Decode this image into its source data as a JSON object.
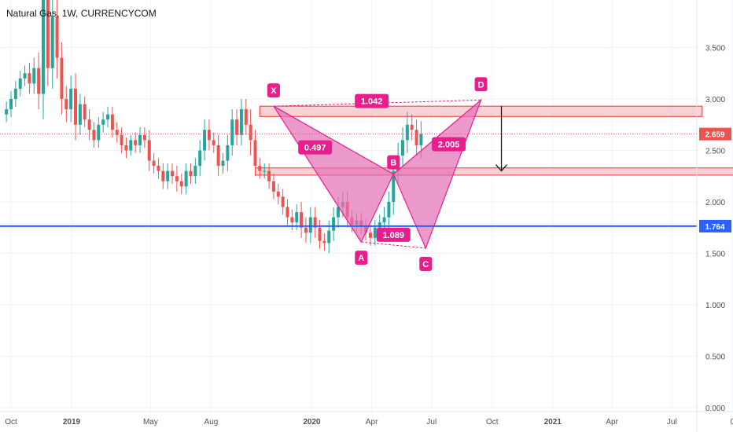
{
  "header": {
    "title": "Natural Gas, 1W, CURRENCYCOM"
  },
  "colors": {
    "up": "#26a69a",
    "down": "#ef5350",
    "pattern": "#e91e8c",
    "pattern_fill": "#e46fb6",
    "level": "#2962ff",
    "zone_fill": "#f4c2c7",
    "zone_stroke": "#e53935"
  },
  "chart_data": {
    "type": "candlestick",
    "title": "Natural Gas, 1W, CURRENCYCOM",
    "ylim": [
      0,
      4.0
    ],
    "y_ticks": [
      "3.500",
      "3.000",
      "2.500",
      "2.000",
      "1.500",
      "1.000",
      "0.500",
      "0.000"
    ],
    "x_ticks": [
      {
        "label": "Oct",
        "date": "2018-10-01",
        "bold": false
      },
      {
        "label": "2019",
        "date": "2019-01-01",
        "bold": true
      },
      {
        "label": "May",
        "date": "2019-05-01",
        "bold": false
      },
      {
        "label": "Aug",
        "date": "2019-08-01",
        "bold": false
      },
      {
        "label": "2020",
        "date": "2020-01-01",
        "bold": true
      },
      {
        "label": "Apr",
        "date": "2020-04-01",
        "bold": false
      },
      {
        "label": "Jul",
        "date": "2020-07-01",
        "bold": false
      },
      {
        "label": "Oct",
        "date": "2020-10-01",
        "bold": false
      },
      {
        "label": "2021",
        "date": "2021-01-01",
        "bold": true
      },
      {
        "label": "Apr",
        "date": "2021-04-01",
        "bold": false
      },
      {
        "label": "Jul",
        "date": "2021-07-01",
        "bold": false
      },
      {
        "label": "0",
        "date": "2021-10-01",
        "bold": false
      }
    ],
    "current_price": {
      "label": "2.659",
      "value": 2.659
    },
    "horizontal_level": {
      "label": "1.764",
      "value": 1.764
    },
    "candles": {
      "start_date": "2018-09-24",
      "close": [
        2.9,
        3.0,
        3.1,
        3.2,
        3.25,
        3.15,
        3.3,
        3.05,
        4.05,
        3.3,
        3.8,
        3.4,
        3.0,
        2.9,
        3.1,
        2.75,
        2.95,
        2.8,
        2.7,
        2.6,
        2.75,
        2.8,
        2.85,
        2.7,
        2.65,
        2.55,
        2.5,
        2.6,
        2.55,
        2.65,
        2.6,
        2.4,
        2.35,
        2.3,
        2.2,
        2.3,
        2.25,
        2.2,
        2.15,
        2.3,
        2.25,
        2.35,
        2.5,
        2.7,
        2.6,
        2.55,
        2.35,
        2.4,
        2.55,
        2.8,
        2.65,
        2.9,
        2.75,
        2.6,
        2.35,
        2.3,
        2.3,
        2.2,
        2.1,
        2.05,
        1.95,
        1.85,
        1.8,
        1.9,
        1.75,
        1.7,
        1.85,
        1.75,
        1.62,
        1.6,
        1.72,
        1.85,
        1.95,
        2.0,
        1.85,
        1.78,
        1.82,
        1.76,
        1.7,
        1.65,
        1.75,
        1.8,
        1.85,
        2.0,
        2.3,
        2.45,
        2.6,
        2.75,
        2.7,
        2.55,
        2.659
      ],
      "range": [
        0.15,
        0.15,
        0.15,
        0.15,
        0.15,
        0.2,
        0.2,
        0.3,
        0.5,
        0.35,
        0.4,
        0.4,
        0.3,
        0.25,
        0.25,
        0.3,
        0.2,
        0.15,
        0.2,
        0.15,
        0.15,
        0.15,
        0.15,
        0.15,
        0.15,
        0.15,
        0.15,
        0.1,
        0.15,
        0.15,
        0.15,
        0.2,
        0.15,
        0.15,
        0.15,
        0.15,
        0.15,
        0.2,
        0.15,
        0.15,
        0.15,
        0.15,
        0.2,
        0.2,
        0.2,
        0.15,
        0.2,
        0.15,
        0.2,
        0.2,
        0.2,
        0.2,
        0.2,
        0.3,
        0.2,
        0.15,
        0.15,
        0.15,
        0.15,
        0.15,
        0.15,
        0.15,
        0.15,
        0.15,
        0.2,
        0.2,
        0.2,
        0.2,
        0.15,
        0.15,
        0.2,
        0.2,
        0.2,
        0.2,
        0.2,
        0.15,
        0.15,
        0.15,
        0.15,
        0.15,
        0.15,
        0.15,
        0.2,
        0.2,
        0.25,
        0.25,
        0.25,
        0.25,
        0.2,
        0.2,
        0.25
      ]
    },
    "harmonic_points": [
      {
        "label": "X",
        "date": "2019-11-04",
        "value": 2.93
      },
      {
        "label": "A",
        "date": "2020-03-16",
        "value": 1.61
      },
      {
        "label": "B",
        "date": "2020-05-04",
        "value": 2.27
      },
      {
        "label": "C",
        "date": "2020-06-22",
        "value": 1.55
      },
      {
        "label": "D",
        "date": "2020-09-14",
        "value": 2.99
      }
    ],
    "ratios": [
      {
        "label": "1.042",
        "date": "2020-04-01",
        "value": 2.98
      },
      {
        "label": "0.497",
        "date": "2020-01-06",
        "value": 2.53
      },
      {
        "label": "2.005",
        "date": "2020-07-27",
        "value": 2.56
      },
      {
        "label": "1.089",
        "date": "2020-05-04",
        "value": 1.68
      }
    ],
    "zones": [
      {
        "name": "upper-zone",
        "date_start": "2019-10-14",
        "date_end": "2021-08-16",
        "top": 2.93,
        "bottom": 2.83
      },
      {
        "name": "lower-zone",
        "date_start": "2019-10-07",
        "date_end": "2021-10-15",
        "top": 2.33,
        "bottom": 2.26
      }
    ],
    "target_arrow": {
      "date": "2020-10-15",
      "from": 2.93,
      "to": 2.3
    }
  }
}
